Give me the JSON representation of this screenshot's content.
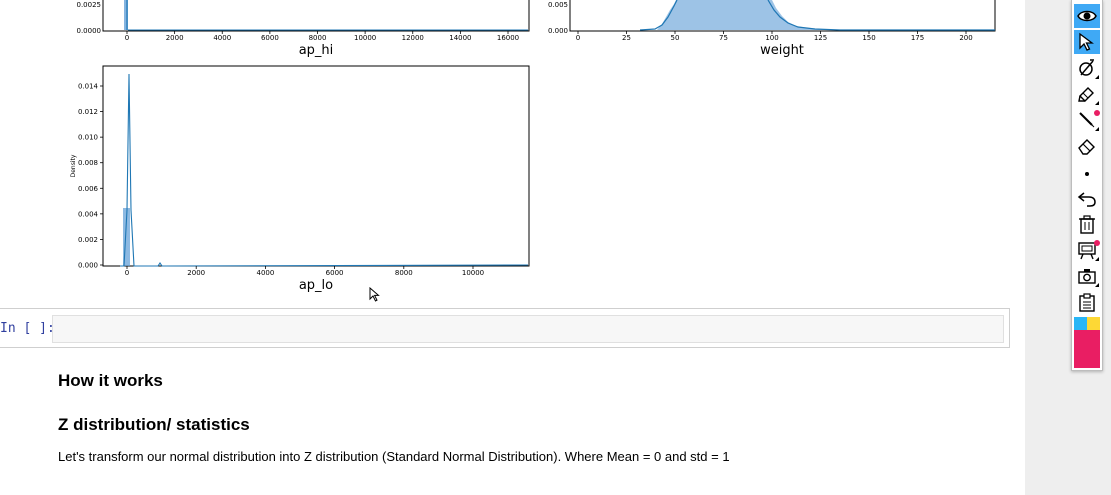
{
  "plots": {
    "ap_hi": {
      "xlabel": "ap_hi",
      "xticks": [
        "0",
        "2000",
        "4000",
        "6000",
        "8000",
        "10000",
        "12000",
        "14000",
        "16000"
      ],
      "yticks": [
        "0.0025",
        "0.0000"
      ]
    },
    "weight": {
      "xlabel": "weight",
      "xticks": [
        "0",
        "25",
        "50",
        "75",
        "100",
        "125",
        "150",
        "175",
        "200"
      ],
      "yticks": [
        "0.005",
        "0.000"
      ]
    },
    "ap_lo": {
      "xlabel": "ap_lo",
      "ylabel": "Density",
      "xticks": [
        "0",
        "2000",
        "4000",
        "6000",
        "8000",
        "10000"
      ],
      "yticks": [
        "0.014",
        "0.012",
        "0.010",
        "0.008",
        "0.006",
        "0.004",
        "0.002",
        "0.000"
      ]
    }
  },
  "cell": {
    "prompt": "In [ ]:",
    "value": ""
  },
  "markdown": {
    "heading_1": "How it works",
    "heading_2": "Z distribution/ statistics",
    "paragraph": "Let's transform our normal distribution into Z distribution (Standard Normal Distribution). Where Mean = 0 and std = 1"
  },
  "toolbar": {
    "tools": [
      "eye-icon",
      "pointer-icon",
      "laser-pointer-icon",
      "highlighter-icon",
      "pen-icon",
      "eraser-icon",
      "dot-icon",
      "undo-icon",
      "trash-icon",
      "whiteboard-icon",
      "camera-icon",
      "clipboard-icon"
    ],
    "palette": [
      "#29b6f6",
      "#fdd835",
      "#000000",
      "#e91e63"
    ],
    "active_color": "#3fa9f5"
  }
}
